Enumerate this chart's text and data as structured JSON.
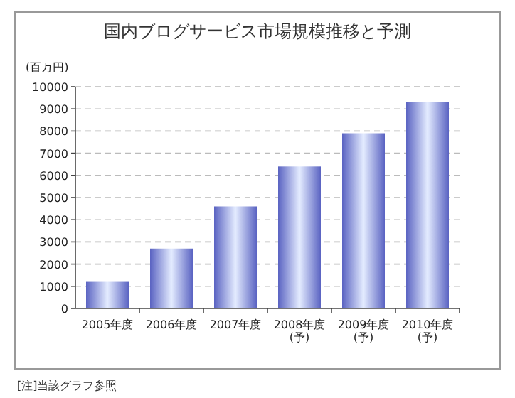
{
  "chart_data": {
    "type": "bar",
    "title": "国内ブログサービス市場規模推移と予測",
    "ylabel": "(百万円)",
    "categories": [
      "2005年度",
      "2006年度",
      "2007年度",
      "2008年度\n(予)",
      "2009年度\n(予)",
      "2010年度\n(予)"
    ],
    "values": [
      1200,
      2700,
      4600,
      6400,
      7900,
      9300
    ],
    "color": "#5a63c2",
    "ylim": [
      0,
      10000
    ],
    "yticks": [
      0,
      1000,
      2000,
      3000,
      4000,
      5000,
      6000,
      7000,
      8000,
      9000,
      10000
    ],
    "grid": "y",
    "annotations": [
      "[注]当該グラフ参照"
    ]
  }
}
